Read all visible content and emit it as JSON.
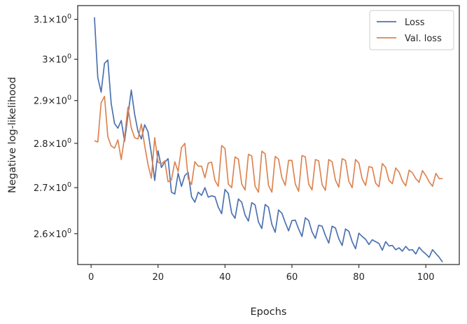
{
  "chart_data": {
    "type": "line",
    "xlabel": "Epochs",
    "ylabel": "Negative log-likelihood",
    "xlim": [
      -4,
      110
    ],
    "ylim": [
      2.535,
      3.135
    ],
    "yscale": "log",
    "grid": false,
    "legend_position": "top-right",
    "x_ticks": [
      0,
      20,
      40,
      60,
      80,
      100
    ],
    "x_tick_labels": [
      "0",
      "20",
      "40",
      "60",
      "80",
      "100"
    ],
    "y_ticks": [
      {
        "value": 2.6,
        "mantissa": "2.6",
        "base": "10",
        "exp": "0"
      },
      {
        "value": 2.7,
        "mantissa": "2.7",
        "base": "10",
        "exp": "0"
      },
      {
        "value": 2.8,
        "mantissa": "2.8",
        "base": "10",
        "exp": "0"
      },
      {
        "value": 2.9,
        "mantissa": "2.9",
        "base": "10",
        "exp": "0"
      },
      {
        "value": 3.0,
        "mantissa": "3",
        "base": "10",
        "exp": "0"
      },
      {
        "value": 3.1,
        "mantissa": "3.1",
        "base": "10",
        "exp": "0"
      }
    ],
    "series": [
      {
        "name": "Loss",
        "color": "#4c72b0",
        "x": [
          1,
          2,
          3,
          4,
          5,
          6,
          7,
          8,
          9,
          10,
          11,
          12,
          13,
          14,
          15,
          16,
          17,
          18,
          19,
          20,
          21,
          22,
          23,
          24,
          25,
          26,
          27,
          28,
          29,
          30,
          31,
          32,
          33,
          34,
          35,
          36,
          37,
          38,
          39,
          40,
          41,
          42,
          43,
          44,
          45,
          46,
          47,
          48,
          49,
          50,
          51,
          52,
          53,
          54,
          55,
          56,
          57,
          58,
          59,
          60,
          61,
          62,
          63,
          64,
          65,
          66,
          67,
          68,
          69,
          70,
          71,
          72,
          73,
          74,
          75,
          76,
          77,
          78,
          79,
          80,
          81,
          82,
          83,
          84,
          85,
          86,
          87,
          88,
          89,
          90,
          91,
          92,
          93,
          94,
          95,
          96,
          97,
          98,
          99,
          100,
          101,
          102,
          103,
          104,
          105
        ],
        "values": [
          3.105,
          2.955,
          2.92,
          2.99,
          2.998,
          2.893,
          2.846,
          2.835,
          2.853,
          2.805,
          2.865,
          2.925,
          2.868,
          2.828,
          2.81,
          2.843,
          2.827,
          2.777,
          2.716,
          2.783,
          2.745,
          2.757,
          2.765,
          2.69,
          2.686,
          2.732,
          2.703,
          2.727,
          2.734,
          2.68,
          2.668,
          2.69,
          2.683,
          2.7,
          2.679,
          2.682,
          2.68,
          2.657,
          2.643,
          2.696,
          2.687,
          2.644,
          2.633,
          2.675,
          2.668,
          2.64,
          2.627,
          2.667,
          2.662,
          2.625,
          2.611,
          2.663,
          2.657,
          2.62,
          2.603,
          2.651,
          2.644,
          2.624,
          2.606,
          2.628,
          2.629,
          2.61,
          2.594,
          2.634,
          2.628,
          2.604,
          2.59,
          2.618,
          2.616,
          2.596,
          2.58,
          2.616,
          2.612,
          2.589,
          2.575,
          2.61,
          2.605,
          2.583,
          2.568,
          2.601,
          2.594,
          2.588,
          2.577,
          2.587,
          2.583,
          2.579,
          2.565,
          2.583,
          2.574,
          2.575,
          2.566,
          2.57,
          2.563,
          2.573,
          2.565,
          2.566,
          2.557,
          2.571,
          2.563,
          2.557,
          2.55,
          2.566,
          2.558,
          2.55,
          2.54
        ]
      },
      {
        "name": "Val. loss",
        "color": "#dd8452",
        "x": [
          1,
          2,
          3,
          4,
          5,
          6,
          7,
          8,
          9,
          10,
          11,
          12,
          13,
          14,
          15,
          16,
          17,
          18,
          19,
          20,
          21,
          22,
          23,
          24,
          25,
          26,
          27,
          28,
          29,
          30,
          31,
          32,
          33,
          34,
          35,
          36,
          37,
          38,
          39,
          40,
          41,
          42,
          43,
          44,
          45,
          46,
          47,
          48,
          49,
          50,
          51,
          52,
          53,
          54,
          55,
          56,
          57,
          58,
          59,
          60,
          61,
          62,
          63,
          64,
          65,
          66,
          67,
          68,
          69,
          70,
          71,
          72,
          73,
          74,
          75,
          76,
          77,
          78,
          79,
          80,
          81,
          82,
          83,
          84,
          85,
          86,
          87,
          88,
          89,
          90,
          91,
          92,
          93,
          94,
          95,
          96,
          97,
          98,
          99,
          100,
          101,
          102,
          103,
          104,
          105
        ],
        "values": [
          2.806,
          2.803,
          2.895,
          2.91,
          2.815,
          2.794,
          2.789,
          2.808,
          2.763,
          2.815,
          2.884,
          2.836,
          2.813,
          2.81,
          2.845,
          2.795,
          2.752,
          2.721,
          2.813,
          2.757,
          2.753,
          2.76,
          2.713,
          2.717,
          2.758,
          2.736,
          2.79,
          2.8,
          2.72,
          2.707,
          2.758,
          2.748,
          2.748,
          2.722,
          2.755,
          2.757,
          2.716,
          2.703,
          2.795,
          2.788,
          2.708,
          2.7,
          2.769,
          2.764,
          2.708,
          2.695,
          2.775,
          2.771,
          2.703,
          2.69,
          2.782,
          2.776,
          2.705,
          2.69,
          2.77,
          2.764,
          2.722,
          2.705,
          2.761,
          2.761,
          2.708,
          2.692,
          2.772,
          2.769,
          2.708,
          2.695,
          2.763,
          2.76,
          2.707,
          2.694,
          2.763,
          2.758,
          2.717,
          2.701,
          2.765,
          2.761,
          2.714,
          2.7,
          2.763,
          2.755,
          2.719,
          2.705,
          2.747,
          2.745,
          2.71,
          2.702,
          2.754,
          2.745,
          2.716,
          2.709,
          2.744,
          2.735,
          2.715,
          2.704,
          2.739,
          2.733,
          2.72,
          2.712,
          2.738,
          2.727,
          2.713,
          2.703,
          2.732,
          2.72,
          2.72
        ]
      }
    ]
  }
}
